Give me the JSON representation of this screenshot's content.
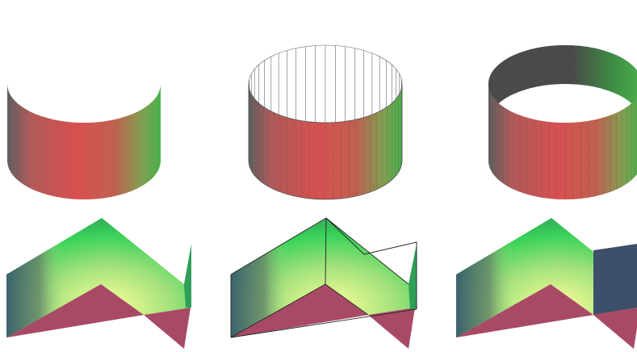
{
  "colors": {
    "background": "#ffffff",
    "cyl_grad": [
      "#5f5f5f",
      "#c65a5a",
      "#d85050",
      "#c06050",
      "#80a050",
      "#49b04b"
    ],
    "inner_dark": [
      "#4a4a4a",
      "#4a4a4a",
      "#4a4a4a",
      "#3a8a40",
      "#49b04b"
    ],
    "wire": "#666666",
    "fold_top": "#3bd35a",
    "fold_mid": "#ffff9a",
    "fold_left": "#3a5070",
    "fold_right_face": "#3d4f6a",
    "fold_pink": "#a84a66"
  },
  "views": [
    {
      "name": "cylinder-view-1",
      "kind": "cylinder",
      "mode": "outer-only"
    },
    {
      "name": "cylinder-view-2",
      "kind": "cylinder",
      "mode": "outer-plus-wireframe"
    },
    {
      "name": "cylinder-view-3",
      "kind": "cylinder",
      "mode": "outer-plus-inner-shaded"
    },
    {
      "name": "fold-view-1",
      "kind": "fold",
      "mode": "gradient"
    },
    {
      "name": "fold-view-2",
      "kind": "fold",
      "mode": "gradient-with-edges"
    },
    {
      "name": "fold-view-3",
      "kind": "fold",
      "mode": "gradient-with-flat-panel"
    }
  ]
}
